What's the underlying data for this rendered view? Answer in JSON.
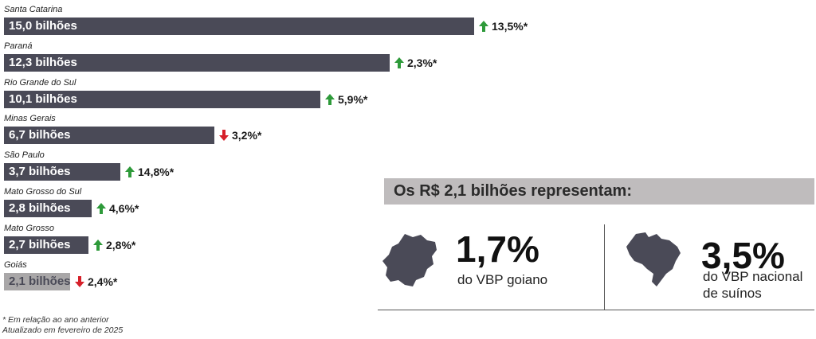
{
  "chart_data": {
    "type": "bar",
    "orientation": "horizontal",
    "categories": [
      "Santa Catarina",
      "Paraná",
      "Rio Grande do Sul",
      "Minas Gerais",
      "São Paulo",
      "Mato Grosso do Sul",
      "Mato Grosso",
      "Goiás"
    ],
    "values": [
      15.0,
      12.3,
      10.1,
      6.7,
      3.7,
      2.8,
      2.7,
      2.1
    ],
    "value_labels": [
      "15,0 bilhões",
      "12,3 bilhões",
      "10,1 bilhões",
      "6,7 bilhões",
      "3,7 bilhões",
      "2,8 bilhões",
      "2,7 bilhões",
      "2,1 bilhões"
    ],
    "changes": [
      "13,5%*",
      "2,3%*",
      "5,9%*",
      "3,2%*",
      "14,8%*",
      "4,6%*",
      "2,8%*",
      "2,4%*"
    ],
    "change_direction": [
      "up",
      "up",
      "up",
      "down",
      "up",
      "up",
      "up",
      "down"
    ],
    "highlight_index": 7,
    "colors": {
      "bar": "#4a4a57",
      "highlight": "#a9a7a8",
      "highlight_text": "#4a4a57",
      "up": "#2e9a3a",
      "down": "#d6202a"
    },
    "grid": false
  },
  "footnotes": {
    "line1": "* Em relação ao ano anterior",
    "line2": "Atualizado em fevereiro de 2025"
  },
  "panel": {
    "title": "Os R$ 2,1 bilhões representam:",
    "left": {
      "value": "1,7%",
      "caption": "do VBP goiano",
      "icon": "goias-map-icon"
    },
    "right": {
      "value": "3,5%",
      "caption_line1": "do VBP nacional",
      "caption_line2": "de suínos",
      "icon": "brazil-map-icon"
    },
    "map_color": "#4a4a57"
  }
}
